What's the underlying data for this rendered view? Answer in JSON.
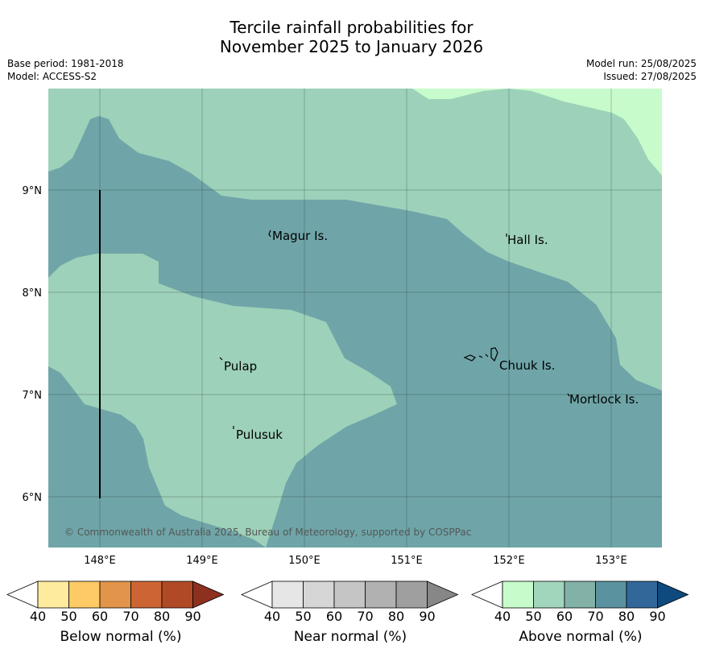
{
  "title": {
    "line1": "Tercile rainfall probabilities for",
    "line2": "November 2025 to January 2026"
  },
  "meta_left": {
    "base_period": "Base period: 1981-2018",
    "model": "Model: ACCESS-S2"
  },
  "meta_right": {
    "model_run": "Model run: 25/08/2025",
    "issued": "Issued: 27/08/2025"
  },
  "map": {
    "lon_ticks": [
      "148°E",
      "149°E",
      "150°E",
      "151°E",
      "152°E",
      "153°E"
    ],
    "lat_ticks": [
      "9°N",
      "8°N",
      "7°N",
      "6°N"
    ],
    "places": [
      {
        "name": "Magur Is."
      },
      {
        "name": "Hall Is."
      },
      {
        "name": "Pulap"
      },
      {
        "name": "Chuuk Is."
      },
      {
        "name": "Mortlock Is."
      },
      {
        "name": "Pulusuk"
      }
    ],
    "copyright": "© Commonwealth of Australia 2025, Bureau of Meteorology, supported by COSPPac",
    "colors": {
      "above_50": "#9dd1b9",
      "above_70": "#6fa5a8",
      "above_40": "#c7fbcb"
    }
  },
  "colorbars": [
    {
      "label": "Below normal (%)",
      "ticks": [
        "40",
        "50",
        "60",
        "70",
        "80",
        "90"
      ],
      "colors": [
        "#ffffff",
        "#feeb9e",
        "#fdca66",
        "#e2944a",
        "#cc6533",
        "#b04a26",
        "#8e3020"
      ]
    },
    {
      "label": "Near normal (%)",
      "ticks": [
        "40",
        "50",
        "60",
        "70",
        "80",
        "90"
      ],
      "colors": [
        "#ffffff",
        "#e6e6e6",
        "#d6d6d6",
        "#c5c5c5",
        "#b1b1b1",
        "#9f9f9f",
        "#878787"
      ]
    },
    {
      "label": "Above normal (%)",
      "ticks": [
        "40",
        "50",
        "60",
        "70",
        "80",
        "90"
      ],
      "colors": [
        "#ffffff",
        "#c7fbcb",
        "#a2d6bc",
        "#82b2a7",
        "#5a92a0",
        "#326899",
        "#0f4a7f"
      ]
    }
  ]
}
